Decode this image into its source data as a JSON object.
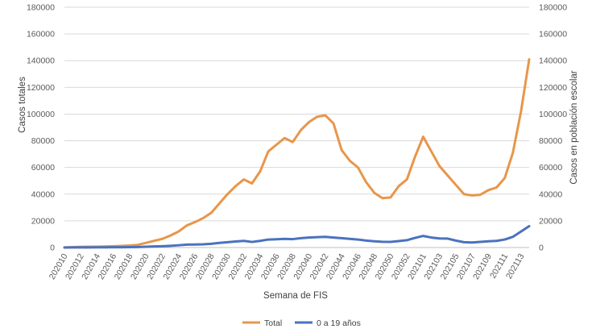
{
  "chart_data": {
    "type": "line",
    "title": "",
    "xlabel": "Semana de FIS",
    "ylabel": "Casos totales",
    "y2label": "Casos en población escolar",
    "ylim": [
      0,
      180000
    ],
    "y2lim": [
      0,
      180000
    ],
    "yticks": [
      "0",
      "20000",
      "40000",
      "60000",
      "80000",
      "100000",
      "120000",
      "140000",
      "160000",
      "180000"
    ],
    "x_tick_labels": [
      "202010",
      "202012",
      "202014",
      "202016",
      "202018",
      "202020",
      "202022",
      "202024",
      "202026",
      "202028",
      "202030",
      "202032",
      "202034",
      "202036",
      "202038",
      "202040",
      "202042",
      "202044",
      "202046",
      "202048",
      "202050",
      "202052",
      "202101",
      "202103",
      "202105",
      "202107",
      "202109",
      "202111",
      "202113"
    ],
    "x": [
      "202010",
      "202011",
      "202012",
      "202013",
      "202014",
      "202015",
      "202016",
      "202017",
      "202018",
      "202019",
      "202020",
      "202021",
      "202022",
      "202023",
      "202024",
      "202025",
      "202026",
      "202027",
      "202028",
      "202029",
      "202030",
      "202031",
      "202032",
      "202033",
      "202034",
      "202035",
      "202036",
      "202037",
      "202038",
      "202039",
      "202040",
      "202041",
      "202042",
      "202043",
      "202044",
      "202045",
      "202046",
      "202047",
      "202048",
      "202049",
      "202050",
      "202051",
      "202052",
      "202053",
      "202101",
      "202102",
      "202103",
      "202104",
      "202105",
      "202106",
      "202107",
      "202108",
      "202109",
      "202110",
      "202111",
      "202112",
      "202113",
      "202114"
    ],
    "series": [
      {
        "name": "Total",
        "color": "#E8964A",
        "axis": "left",
        "values": [
          100,
          300,
          500,
          600,
          700,
          800,
          1000,
          1200,
          1500,
          2000,
          3500,
          5000,
          6500,
          9000,
          12000,
          16500,
          19000,
          22000,
          26000,
          33000,
          40000,
          46000,
          51000,
          48000,
          57000,
          72000,
          77000,
          82000,
          79000,
          88000,
          94000,
          98000,
          99000,
          93000,
          73000,
          65000,
          60000,
          49000,
          41000,
          37000,
          37500,
          46000,
          51000,
          68000,
          83000,
          72000,
          61000,
          54000,
          47000,
          40000,
          39000,
          39500,
          43000,
          45000,
          52000,
          71000,
          102000,
          141000
        ]
      },
      {
        "name": "0 a 19 años",
        "color": "#4A72BE",
        "axis": "right",
        "values": [
          20,
          50,
          80,
          100,
          120,
          150,
          200,
          250,
          300,
          400,
          600,
          800,
          1000,
          1300,
          1700,
          2200,
          2300,
          2400,
          2800,
          3500,
          4000,
          4500,
          5000,
          4200,
          5000,
          6000,
          6200,
          6500,
          6300,
          7000,
          7500,
          7800,
          8000,
          7500,
          7000,
          6500,
          6000,
          5200,
          4700,
          4300,
          4200,
          4800,
          5500,
          7200,
          8700,
          7500,
          6800,
          6700,
          5200,
          4000,
          3800,
          4200,
          4700,
          5000,
          6000,
          8000,
          12000,
          16000
        ]
      }
    ],
    "legend": {
      "placement": "bottom",
      "entries": [
        "Total",
        "0 a 19 años"
      ]
    },
    "grid": "horizontal"
  }
}
